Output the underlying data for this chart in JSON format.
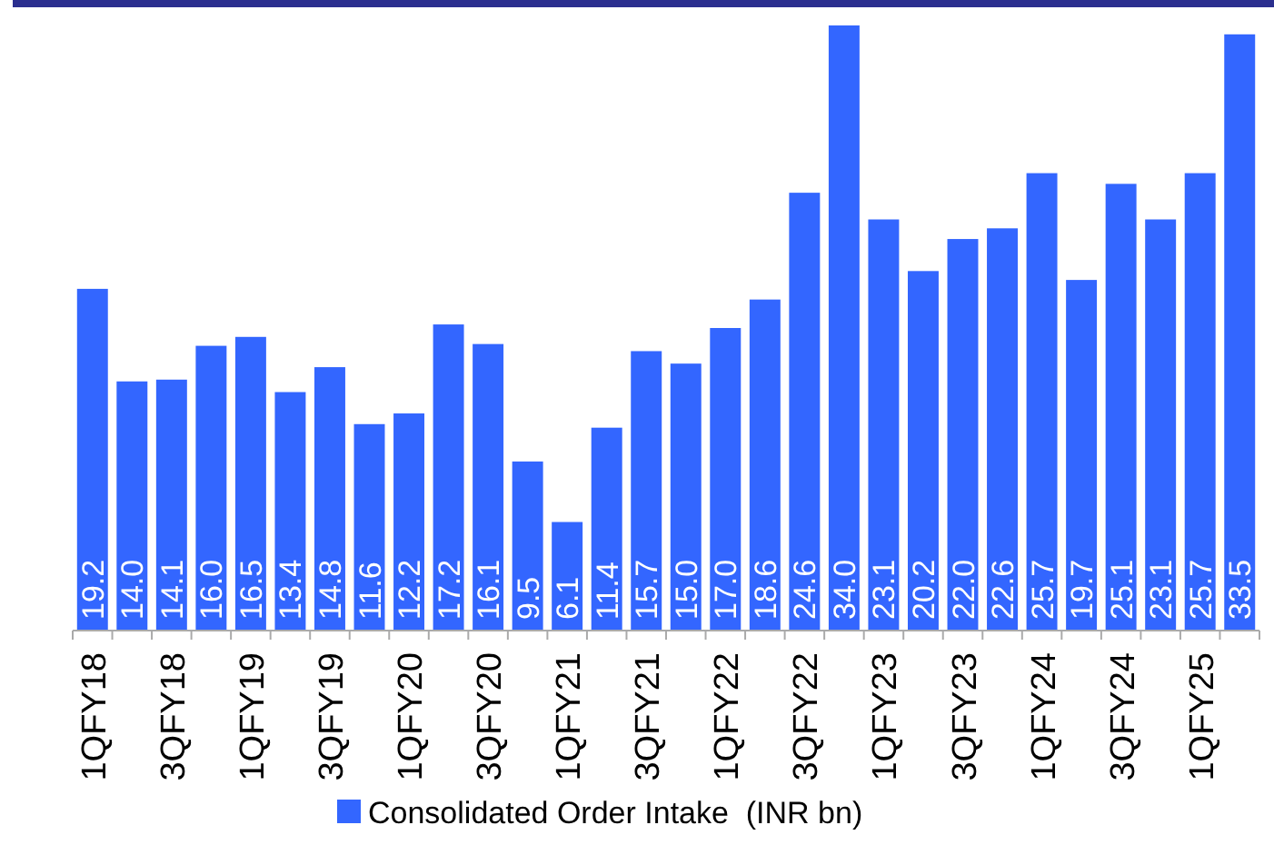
{
  "chart_data": {
    "type": "bar",
    "categories": [
      "1QFY18",
      null,
      "3QFY18",
      null,
      "1QFY19",
      null,
      "3QFY19",
      null,
      "1QFY20",
      null,
      "3QFY20",
      null,
      "1QFY21",
      null,
      "3QFY21",
      null,
      "1QFY22",
      null,
      "3QFY22",
      null,
      "1QFY23",
      null,
      "3QFY23",
      null,
      "1QFY24",
      null,
      "3QFY24",
      null,
      "1QFY25",
      null
    ],
    "series": [
      {
        "name": "Consolidated Order Intake  (INR bn)",
        "color": "#3366ff",
        "values": [
          19.2,
          14.0,
          14.1,
          16.0,
          16.5,
          13.4,
          14.8,
          11.6,
          12.2,
          17.2,
          16.1,
          9.5,
          6.1,
          11.4,
          15.7,
          15.0,
          17.0,
          18.6,
          24.6,
          34.0,
          23.1,
          20.2,
          22.0,
          22.6,
          25.7,
          19.7,
          25.1,
          23.1,
          25.7,
          33.5
        ],
        "value_labels": [
          "19.2",
          "14.0",
          "14.1",
          "16.0",
          "16.5",
          "13.4",
          "14.8",
          "11.6",
          "12.2",
          "17.2",
          "16.1",
          "9.5",
          "6.1",
          "11.4",
          "15.7",
          "15.0",
          "17.0",
          "18.6",
          "24.6",
          "34.0",
          "23.1",
          "20.2",
          "22.0",
          "22.6",
          "25.7",
          "19.7",
          "25.1",
          "23.1",
          "25.7",
          "33.5"
        ]
      }
    ],
    "legend": "bottom"
  }
}
